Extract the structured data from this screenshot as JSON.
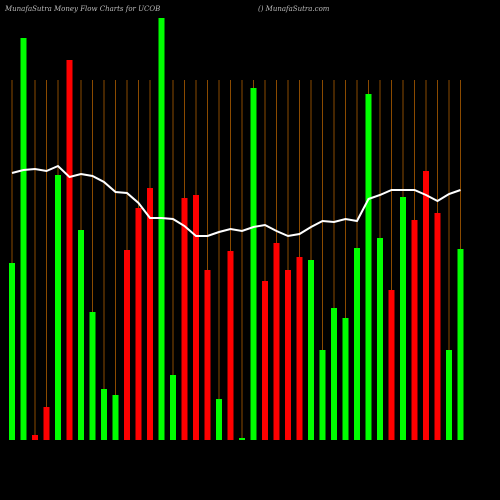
{
  "chart_data": {
    "type": "bar",
    "title": "MunafaSutra  Money Flow  Charts for UCOB",
    "subtitle": "() MunafaSutra.com",
    "values": [
      177,
      402,
      5,
      33,
      265,
      380,
      210,
      128,
      51,
      45,
      190,
      232,
      252,
      422,
      65,
      242,
      245,
      170,
      41,
      189,
      2,
      352,
      159,
      197,
      170,
      183,
      180,
      90,
      132,
      122,
      192,
      346,
      202,
      150,
      243,
      220,
      269,
      227,
      90,
      191
    ],
    "colors": [
      "#00ff00",
      "#00ff00",
      "#ff0000",
      "#ff0000",
      "#00ff00",
      "#ff0000",
      "#00ff00",
      "#00ff00",
      "#00ff00",
      "#00ff00",
      "#ff0000",
      "#ff0000",
      "#ff0000",
      "#00ff00",
      "#00ff00",
      "#ff0000",
      "#ff0000",
      "#ff0000",
      "#00ff00",
      "#ff0000",
      "#00ff00",
      "#00ff00",
      "#ff0000",
      "#ff0000",
      "#ff0000",
      "#ff0000",
      "#00ff00",
      "#00ff00",
      "#00ff00",
      "#00ff00",
      "#00ff00",
      "#00ff00",
      "#00ff00",
      "#ff0000",
      "#00ff00",
      "#ff0000",
      "#ff0000",
      "#ff0000",
      "#00ff00",
      "#00ff00"
    ],
    "line": {
      "color": "#ffffff",
      "values": [
        267,
        270,
        271,
        269,
        274,
        263,
        266,
        264,
        258,
        248,
        247,
        237,
        222,
        222,
        221,
        214,
        204,
        204,
        208,
        211,
        209,
        213,
        215,
        209,
        204,
        206,
        213,
        219,
        218,
        221,
        219,
        241,
        245,
        250,
        250,
        250,
        245,
        239,
        246,
        250
      ]
    },
    "ylim": [
      0,
      425
    ]
  }
}
